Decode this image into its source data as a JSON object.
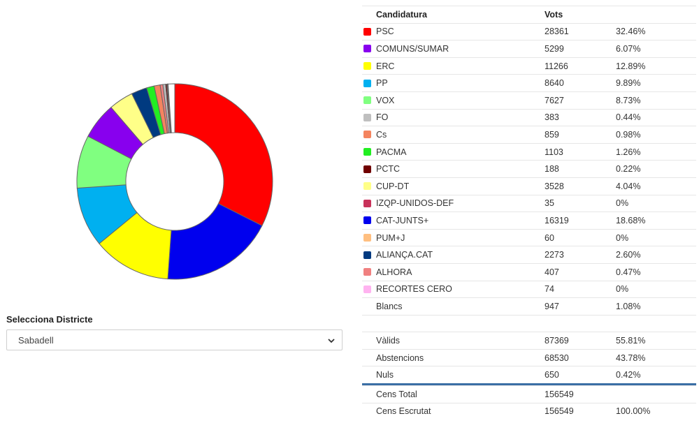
{
  "chart_data": {
    "type": "pie",
    "subtype": "donut",
    "labels": [
      "PSC",
      "COMUNS/SUMAR",
      "ERC",
      "PP",
      "VOX",
      "FO",
      "Cs",
      "PACMA",
      "PCTC",
      "CUP-DT",
      "IZQP-UNIDOS-DEF",
      "CAT-JUNTS+",
      "PUM+J",
      "ALIANÇA.CAT",
      "ALHORA",
      "RECORTES CERO",
      "Blancs"
    ],
    "values": [
      28361,
      5299,
      11266,
      8640,
      7627,
      383,
      859,
      1103,
      188,
      3528,
      35,
      16319,
      60,
      2273,
      407,
      74,
      947
    ],
    "colors": [
      "#ff0000",
      "#8800ee",
      "#ffff00",
      "#00b0f0",
      "#80ff80",
      "#bfbfbf",
      "#f4845f",
      "#22ee22",
      "#700000",
      "#ffff88",
      "#c8325a",
      "#0000ee",
      "#ffbf80",
      "#003a80",
      "#f08080",
      "#ffb3f0",
      "#ffffff"
    ],
    "order_clockwise": [
      "PSC",
      "CAT-JUNTS+",
      "ERC",
      "PP",
      "VOX",
      "COMUNS/SUMAR",
      "CUP-DT",
      "ALIANÇA.CAT",
      "PACMA",
      "Cs",
      "ALHORA",
      "FO",
      "PCTC",
      "RECORTES CERO",
      "PUM+J",
      "IZQP-UNIDOS-DEF",
      "Blancs"
    ]
  },
  "district": {
    "label": "Selecciona Districte",
    "selected": "Sabadell"
  },
  "table": {
    "headers": {
      "candidatura": "Candidatura",
      "vots": "Vots",
      "pct": ""
    },
    "rows": [
      {
        "name": "PSC",
        "color": "#ff0000",
        "votes": "28361",
        "pct": "32.46%"
      },
      {
        "name": "COMUNS/SUMAR",
        "color": "#8800ee",
        "votes": "5299",
        "pct": "6.07%"
      },
      {
        "name": "ERC",
        "color": "#ffff00",
        "votes": "11266",
        "pct": "12.89%"
      },
      {
        "name": "PP",
        "color": "#00b0f0",
        "votes": "8640",
        "pct": "9.89%"
      },
      {
        "name": "VOX",
        "color": "#80ff80",
        "votes": "7627",
        "pct": "8.73%"
      },
      {
        "name": "FO",
        "color": "#bfbfbf",
        "votes": "383",
        "pct": "0.44%"
      },
      {
        "name": "Cs",
        "color": "#f4845f",
        "votes": "859",
        "pct": "0.98%"
      },
      {
        "name": "PACMA",
        "color": "#22ee22",
        "votes": "1103",
        "pct": "1.26%"
      },
      {
        "name": "PCTC",
        "color": "#700000",
        "votes": "188",
        "pct": "0.22%"
      },
      {
        "name": "CUP-DT",
        "color": "#ffff88",
        "votes": "3528",
        "pct": "4.04%"
      },
      {
        "name": "IZQP-UNIDOS-DEF",
        "color": "#c8325a",
        "votes": "35",
        "pct": "0%"
      },
      {
        "name": "CAT-JUNTS+",
        "color": "#0000ee",
        "votes": "16319",
        "pct": "18.68%"
      },
      {
        "name": "PUM+J",
        "color": "#ffbf80",
        "votes": "60",
        "pct": "0%"
      },
      {
        "name": "ALIANÇA.CAT",
        "color": "#003a80",
        "votes": "2273",
        "pct": "2.60%"
      },
      {
        "name": "ALHORA",
        "color": "#f08080",
        "votes": "407",
        "pct": "0.47%"
      },
      {
        "name": "RECORTES CERO",
        "color": "#ffb3f0",
        "votes": "74",
        "pct": "0%"
      },
      {
        "name": "Blancs",
        "color": "",
        "votes": "947",
        "pct": "1.08%"
      }
    ],
    "summary": [
      {
        "name": "Vàlids",
        "votes": "87369",
        "pct": "55.81%"
      },
      {
        "name": "Abstencions",
        "votes": "68530",
        "pct": "43.78%"
      },
      {
        "name": "Nuls",
        "votes": "650",
        "pct": "0.42%"
      }
    ],
    "census": [
      {
        "name": "Cens Total",
        "votes": "156549",
        "pct": ""
      },
      {
        "name": "Cens Escrutat",
        "votes": "156549",
        "pct": "100.00%"
      }
    ]
  }
}
